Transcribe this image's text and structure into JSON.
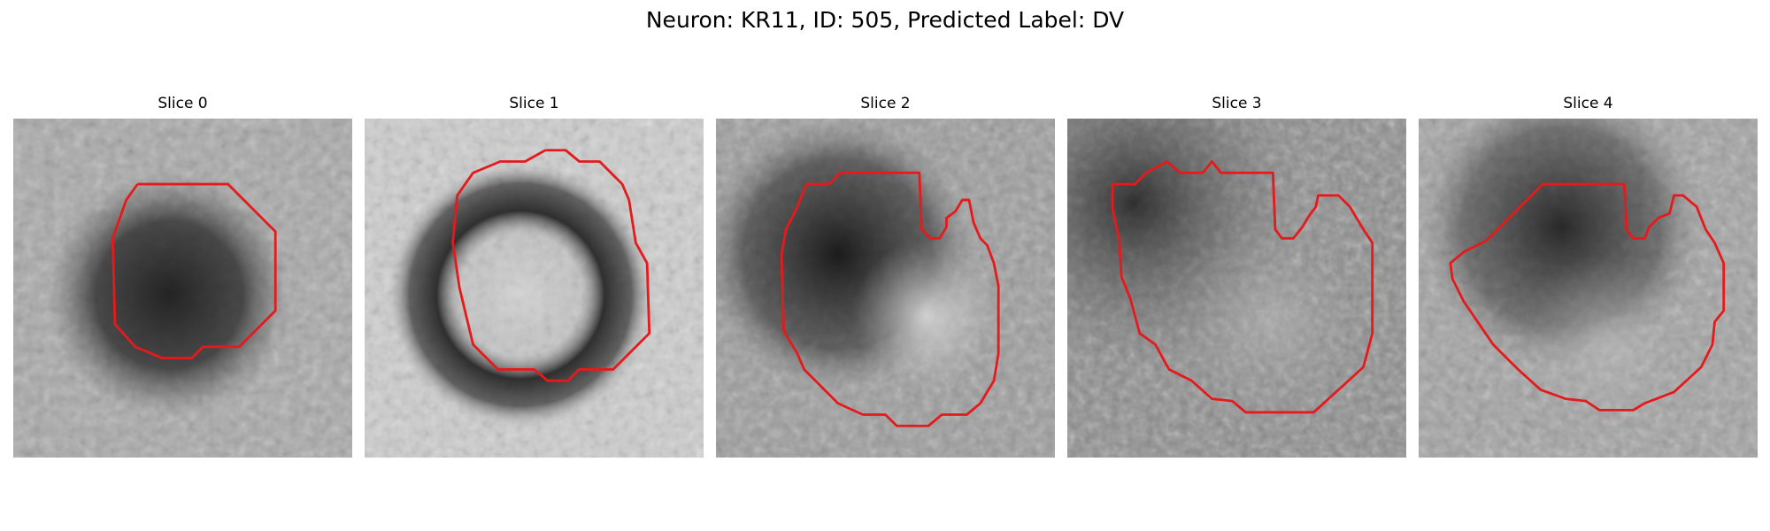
{
  "figure": {
    "title": "Neuron: KR11, ID: 505, Predicted Label: DV"
  },
  "panels": [
    {
      "title": "Slice 0"
    },
    {
      "title": "Slice 1"
    },
    {
      "title": "Slice 2"
    },
    {
      "title": "Slice 3"
    },
    {
      "title": "Slice 4"
    }
  ],
  "colors": {
    "contour": "#e41a1c",
    "background": "#ffffff"
  }
}
